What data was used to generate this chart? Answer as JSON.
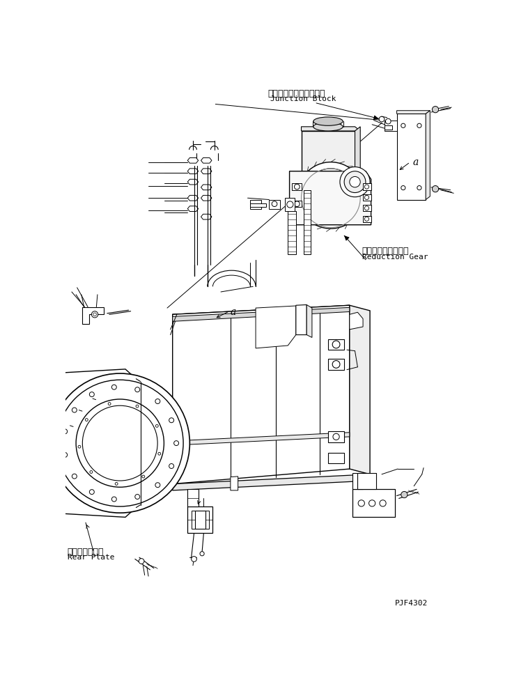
{
  "background_color": "#ffffff",
  "fig_width": 7.35,
  "fig_height": 9.89,
  "dpi": 100,
  "labels": {
    "junction_block_jp": "ジャンクションブロック",
    "junction_block_en": "Junction Block",
    "reduction_gear_jp": "リダクションギヤー",
    "reduction_gear_en": "Reduction Gear",
    "rear_plate_jp": "リヤープレート",
    "rear_plate_en": "Rear Plate",
    "label_a_upper": "a",
    "label_a_lower": "a",
    "part_number": "PJF4302"
  },
  "text_color": "#000000"
}
